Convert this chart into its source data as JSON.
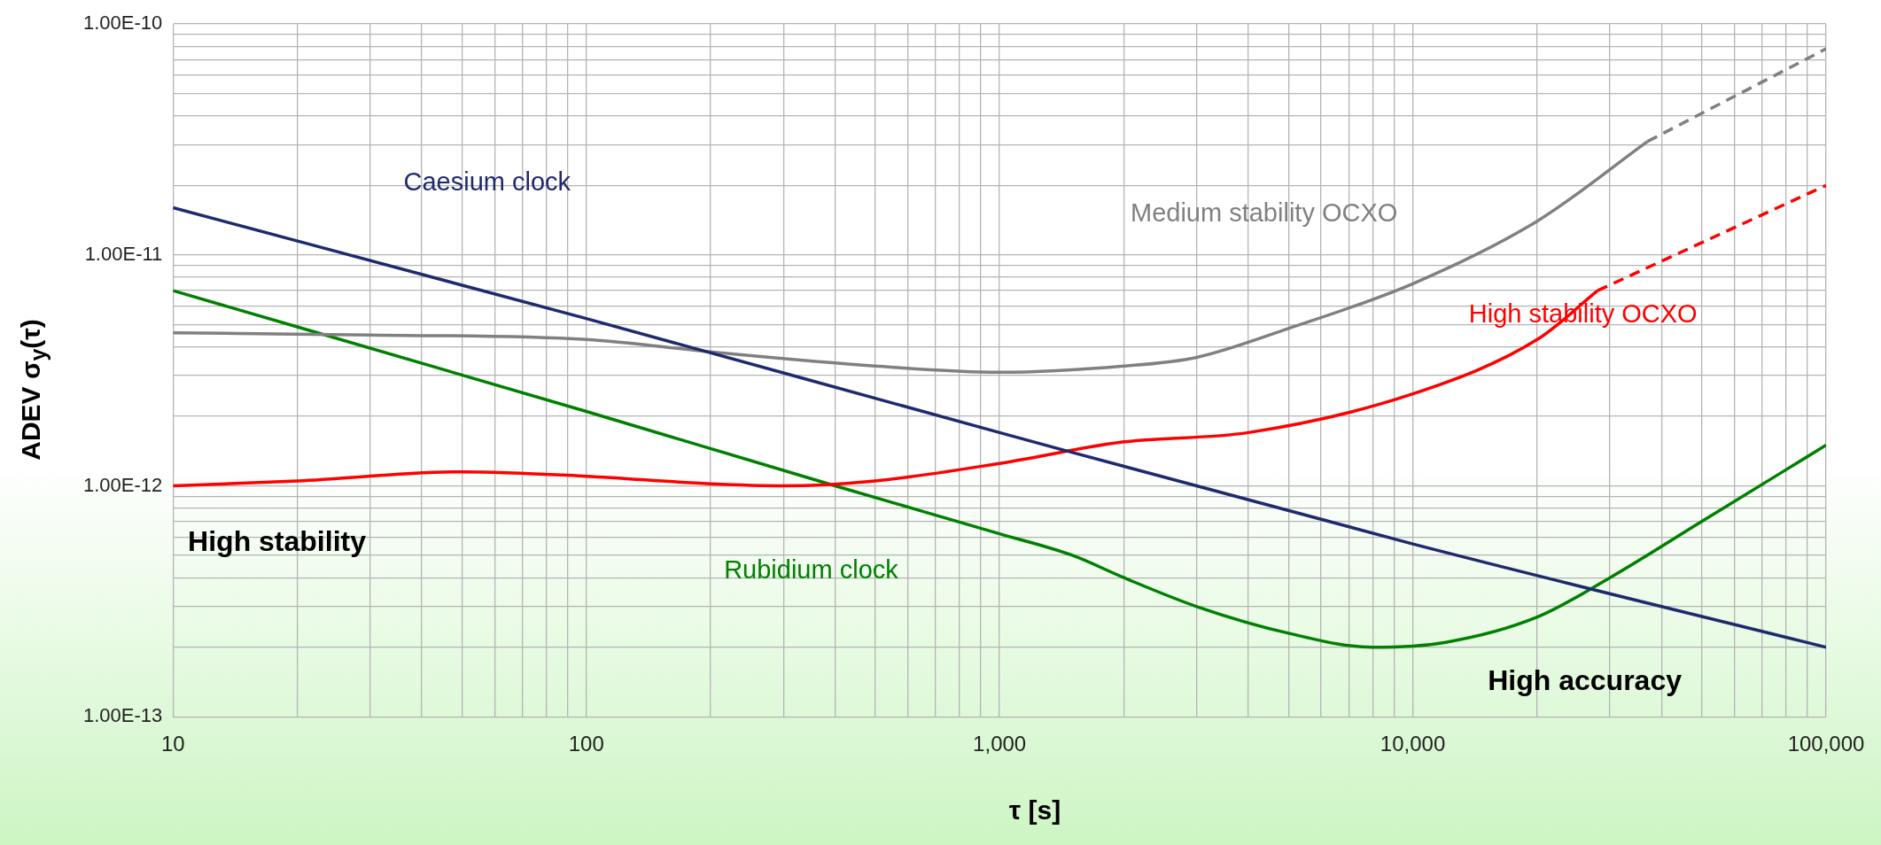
{
  "chart_data": {
    "type": "line",
    "xlabel": "τ [s]",
    "ylabel": "ADEV σ$_{y}$(τ)",
    "log": "xy",
    "grid": true,
    "legend": false,
    "marker": "none",
    "xlim": [
      10,
      100000
    ],
    "ylim": [
      1e-13,
      1e-10
    ],
    "xticks": [
      {
        "value": 10,
        "label": "10"
      },
      {
        "value": 20,
        "label": null
      },
      {
        "value": 30,
        "label": null
      },
      {
        "value": 40,
        "label": null
      },
      {
        "value": 50,
        "label": null
      },
      {
        "value": 60,
        "label": null
      },
      {
        "value": 70,
        "label": null
      },
      {
        "value": 80,
        "label": null
      },
      {
        "value": 90,
        "label": null
      },
      {
        "value": 100,
        "label": "100"
      },
      {
        "value": 200,
        "label": null
      },
      {
        "value": 300,
        "label": null
      },
      {
        "value": 400,
        "label": null
      },
      {
        "value": 500,
        "label": null
      },
      {
        "value": 600,
        "label": null
      },
      {
        "value": 700,
        "label": null
      },
      {
        "value": 800,
        "label": null
      },
      {
        "value": 900,
        "label": null
      },
      {
        "value": 1000,
        "label": "1,000"
      },
      {
        "value": 2000,
        "label": null
      },
      {
        "value": 3000,
        "label": null
      },
      {
        "value": 4000,
        "label": null
      },
      {
        "value": 5000,
        "label": null
      },
      {
        "value": 6000,
        "label": null
      },
      {
        "value": 7000,
        "label": null
      },
      {
        "value": 8000,
        "label": null
      },
      {
        "value": 9000,
        "label": null
      },
      {
        "value": 10000,
        "label": "10,000"
      },
      {
        "value": 20000,
        "label": null
      },
      {
        "value": 30000,
        "label": null
      },
      {
        "value": 40000,
        "label": null
      },
      {
        "value": 50000,
        "label": null
      },
      {
        "value": 60000,
        "label": null
      },
      {
        "value": 70000,
        "label": null
      },
      {
        "value": 80000,
        "label": null
      },
      {
        "value": 90000,
        "label": null
      },
      {
        "value": 100000,
        "label": "100,000"
      }
    ],
    "yticks": [
      {
        "value": 1e-13,
        "label": "1.00E-13"
      },
      {
        "value": 2e-13,
        "label": null
      },
      {
        "value": 3e-13,
        "label": null
      },
      {
        "value": 4e-13,
        "label": null
      },
      {
        "value": 5e-13,
        "label": null
      },
      {
        "value": 6e-13,
        "label": null
      },
      {
        "value": 7e-13,
        "label": null
      },
      {
        "value": 8e-13,
        "label": null
      },
      {
        "value": 9e-13,
        "label": null
      },
      {
        "value": 1e-12,
        "label": "1.00E-12"
      },
      {
        "value": 2e-12,
        "label": null
      },
      {
        "value": 3e-12,
        "label": null
      },
      {
        "value": 4e-12,
        "label": null
      },
      {
        "value": 5e-12,
        "label": null
      },
      {
        "value": 6e-12,
        "label": null
      },
      {
        "value": 7e-12,
        "label": null
      },
      {
        "value": 8e-12,
        "label": null
      },
      {
        "value": 9e-12,
        "label": null
      },
      {
        "value": 1e-11,
        "label": "1.00E-11"
      },
      {
        "value": 2e-11,
        "label": null
      },
      {
        "value": 3e-11,
        "label": null
      },
      {
        "value": 4e-11,
        "label": null
      },
      {
        "value": 5e-11,
        "label": null
      },
      {
        "value": 6e-11,
        "label": null
      },
      {
        "value": 7e-11,
        "label": null
      },
      {
        "value": 8e-11,
        "label": null
      },
      {
        "value": 9e-11,
        "label": null
      },
      {
        "value": 1e-10,
        "label": "1.00E-10"
      }
    ],
    "series": [
      {
        "name": "Caesium clock",
        "color": "#1f2a6e",
        "line_style": "solid",
        "x": [
          10,
          100,
          1000,
          10000,
          100000
        ],
        "values": [
          1.6e-11,
          5.3e-12,
          1.7e-12,
          5.6e-13,
          2e-13
        ]
      },
      {
        "name": "Medium stability OCXO",
        "color": "#808080",
        "line_style": "solid",
        "x": [
          10,
          30,
          100,
          200,
          500,
          1000,
          2000,
          3000,
          5000,
          10000,
          20000,
          37000
        ],
        "values": [
          4.6e-12,
          4.5e-12,
          4.3e-12,
          3.8e-12,
          3.3e-12,
          3.1e-12,
          3.3e-12,
          3.6e-12,
          4.8e-12,
          7.5e-12,
          1.4e-11,
          3.1e-11
        ]
      },
      {
        "color": "#808080",
        "line_style": "dashed",
        "x": [
          37000,
          100000
        ],
        "values": [
          3.1e-11,
          7.8e-11
        ]
      },
      {
        "name": "High stability OCXO",
        "color": "#ff0000",
        "line_style": "solid",
        "x": [
          10,
          20,
          50,
          100,
          200,
          300,
          500,
          1000,
          2000,
          4000,
          10000,
          20000,
          28000
        ],
        "values": [
          1e-12,
          1.05e-12,
          1.15e-12,
          1.1e-12,
          1.02e-12,
          1e-12,
          1.05e-12,
          1.25e-12,
          1.55e-12,
          1.7e-12,
          2.5e-12,
          4.3e-12,
          7e-12
        ]
      },
      {
        "color": "#ff0000",
        "line_style": "dashed",
        "x": [
          28000,
          100000
        ],
        "values": [
          7e-12,
          2e-11
        ]
      },
      {
        "name": "Rubidium clock",
        "color": "#008000",
        "line_style": "solid",
        "x": [
          10,
          100,
          400,
          1000,
          1500,
          2000,
          3000,
          5000,
          8000,
          12000,
          20000,
          30000,
          50000,
          100000
        ],
        "values": [
          7e-12,
          2.1e-12,
          1e-12,
          6.2e-13,
          5e-13,
          4e-13,
          3e-13,
          2.3e-13,
          2e-13,
          2.1e-13,
          2.7e-13,
          4e-13,
          7e-13,
          1.5e-12
        ]
      }
    ],
    "annotations": [
      "High stability",
      "High accuracy"
    ]
  }
}
